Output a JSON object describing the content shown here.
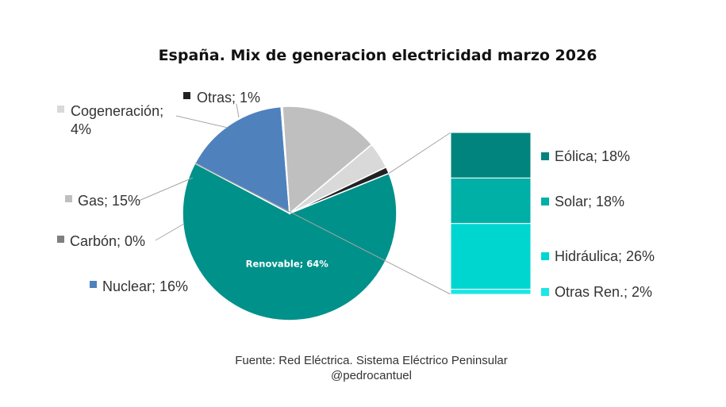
{
  "chart_data": {
    "type": "pie",
    "title": "España. Mix de generacion electricidad marzo 2026",
    "slices": [
      {
        "label": "Renovable; 64%",
        "name": "Renovable",
        "value": 64,
        "color": "#00918a"
      },
      {
        "label": "Nuclear; 16%",
        "name": "Nuclear",
        "value": 16,
        "color": "#4f81bd"
      },
      {
        "label": "Carbón; 0%",
        "name": "Carbón",
        "value": 0.2,
        "color": "#7f7f7f"
      },
      {
        "label": "Gas; 15%",
        "name": "Gas",
        "value": 15,
        "color": "#bfbfbf"
      },
      {
        "label": "Cogeneración; 4%",
        "name": "Cogeneración",
        "value": 4,
        "color": "#d9d9d9"
      },
      {
        "label": "Otras; 1%",
        "name": "Otras",
        "value": 1,
        "color": "#222222"
      }
    ],
    "breakdown": {
      "of": "Renovable",
      "segments": [
        {
          "label": "Eólica; 18%",
          "name": "Eólica",
          "value": 18,
          "color": "#00847d"
        },
        {
          "label": "Solar; 18%",
          "name": "Solar",
          "value": 18,
          "color": "#00afa6"
        },
        {
          "label": "Hidráulica; 26%",
          "name": "Hidráulica",
          "value": 26,
          "color": "#00d6d0"
        },
        {
          "label": "Otras Ren.; 2%",
          "name": "Otras Ren.",
          "value": 2,
          "color": "#1ce6e6"
        }
      ]
    },
    "source": "Fuente: Red Eléctrica. Sistema Eléctrico Peninsular",
    "author": "@pedrocantuel"
  }
}
